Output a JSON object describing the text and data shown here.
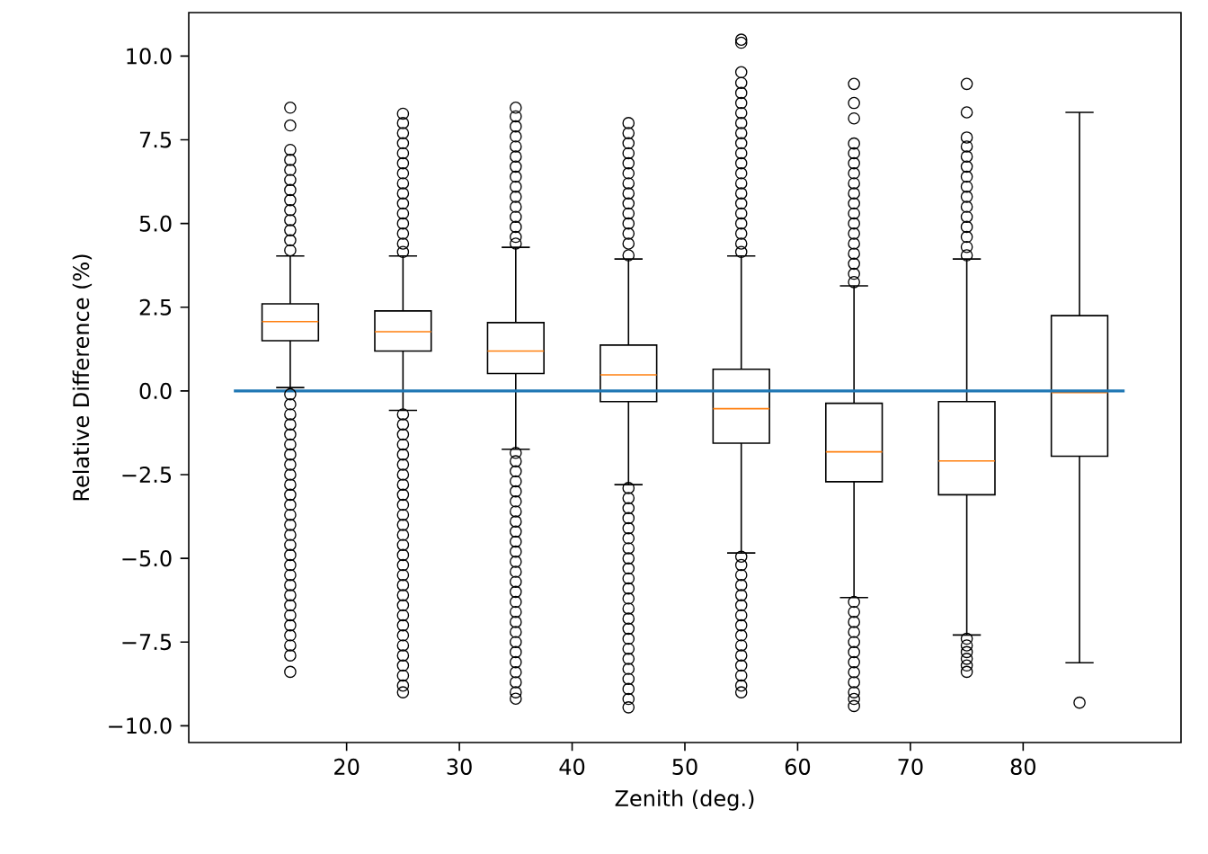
{
  "chart_data": {
    "type": "box",
    "xlabel": "Zenith (deg.)",
    "ylabel": "Relative Difference (%)",
    "xlim": [
      6,
      94
    ],
    "xticks": [
      20,
      30,
      40,
      50,
      60,
      70,
      80
    ],
    "ylim": [
      -10.5,
      11.3
    ],
    "yticks": [
      {
        "value": -10,
        "label": "−10.0"
      },
      {
        "value": -7.5,
        "label": "−7.5"
      },
      {
        "value": -5,
        "label": "−5.0"
      },
      {
        "value": -2.5,
        "label": "−2.5"
      },
      {
        "value": 0,
        "label": "0.0"
      },
      {
        "value": 2.5,
        "label": "2.5"
      },
      {
        "value": 5,
        "label": "5.0"
      },
      {
        "value": 7.5,
        "label": "7.5"
      },
      {
        "value": 10,
        "label": "10.0"
      }
    ],
    "series": [
      {
        "marker": "circle",
        "color": "#000000",
        "x": [
          15,
          25,
          35,
          45,
          55,
          65,
          75,
          85
        ],
        "boxes": [
          {
            "low": 0.1,
            "q1": 1.5,
            "median": 2.07,
            "q3": 2.6,
            "high": 4.03,
            "outliers": [
              8.46,
              7.93,
              7.2,
              6.9,
              6.6,
              6.3,
              6.0,
              5.7,
              5.4,
              5.1,
              4.8,
              4.5,
              4.2,
              -0.1,
              -0.4,
              -0.7,
              -1.0,
              -1.3,
              -1.6,
              -1.9,
              -2.2,
              -2.5,
              -2.8,
              -3.1,
              -3.4,
              -3.7,
              -4.0,
              -4.3,
              -4.6,
              -4.9,
              -5.2,
              -5.5,
              -5.8,
              -6.1,
              -6.4,
              -6.7,
              -7.0,
              -7.3,
              -7.6,
              -7.9,
              -8.39
            ]
          },
          {
            "low": -0.58,
            "q1": 1.19,
            "median": 1.77,
            "q3": 2.39,
            "high": 4.03,
            "outliers": [
              8.28,
              8.0,
              7.7,
              7.4,
              7.1,
              6.8,
              6.5,
              6.2,
              5.9,
              5.6,
              5.3,
              5.0,
              4.7,
              4.4,
              4.15,
              -0.7,
              -1.0,
              -1.3,
              -1.6,
              -1.9,
              -2.2,
              -2.5,
              -2.8,
              -3.1,
              -3.4,
              -3.7,
              -4.0,
              -4.3,
              -4.6,
              -4.9,
              -5.2,
              -5.5,
              -5.8,
              -6.1,
              -6.4,
              -6.7,
              -7.0,
              -7.3,
              -7.6,
              -7.9,
              -8.2,
              -8.5,
              -8.8,
              -9.0
            ]
          },
          {
            "low": -1.74,
            "q1": 0.52,
            "median": 1.19,
            "q3": 2.04,
            "high": 4.29,
            "outliers": [
              8.46,
              8.2,
              7.9,
              7.6,
              7.3,
              7.0,
              6.7,
              6.4,
              6.1,
              5.8,
              5.5,
              5.2,
              4.9,
              4.6,
              4.4,
              -1.85,
              -2.1,
              -2.4,
              -2.7,
              -3.0,
              -3.3,
              -3.6,
              -3.9,
              -4.2,
              -4.5,
              -4.8,
              -5.1,
              -5.4,
              -5.7,
              -6.0,
              -6.3,
              -6.6,
              -6.9,
              -7.2,
              -7.5,
              -7.8,
              -8.1,
              -8.4,
              -8.7,
              -9.0,
              -9.19
            ]
          },
          {
            "low": -2.8,
            "q1": -0.32,
            "median": 0.48,
            "q3": 1.37,
            "high": 3.94,
            "outliers": [
              8.0,
              7.7,
              7.4,
              7.1,
              6.8,
              6.5,
              6.2,
              5.9,
              5.6,
              5.3,
              5.0,
              4.7,
              4.4,
              4.05,
              -2.9,
              -3.2,
              -3.5,
              -3.8,
              -4.1,
              -4.4,
              -4.7,
              -5.0,
              -5.3,
              -5.6,
              -5.9,
              -6.2,
              -6.5,
              -6.8,
              -7.1,
              -7.4,
              -7.7,
              -8.0,
              -8.3,
              -8.6,
              -8.9,
              -9.2,
              -9.45
            ]
          },
          {
            "low": -4.84,
            "q1": -1.56,
            "median": -0.53,
            "q3": 0.65,
            "high": 4.03,
            "outliers": [
              10.49,
              10.4,
              9.52,
              9.2,
              8.9,
              8.6,
              8.3,
              8.0,
              7.7,
              7.4,
              7.1,
              6.8,
              6.5,
              6.2,
              5.9,
              5.6,
              5.3,
              5.0,
              4.7,
              4.4,
              4.15,
              -4.95,
              -5.2,
              -5.5,
              -5.8,
              -6.1,
              -6.4,
              -6.7,
              -7.0,
              -7.3,
              -7.6,
              -7.9,
              -8.2,
              -8.5,
              -8.8,
              -9.0
            ]
          },
          {
            "low": -6.17,
            "q1": -2.71,
            "median": -1.82,
            "q3": -0.37,
            "high": 3.14,
            "outliers": [
              9.17,
              8.6,
              8.14,
              7.39,
              7.1,
              6.8,
              6.5,
              6.2,
              5.9,
              5.6,
              5.3,
              5.0,
              4.7,
              4.4,
              4.1,
              3.8,
              3.5,
              3.25,
              -6.3,
              -6.6,
              -6.9,
              -7.2,
              -7.5,
              -7.8,
              -8.1,
              -8.4,
              -8.7,
              -9.0,
              -9.2,
              -9.41
            ]
          },
          {
            "low": -7.29,
            "q1": -3.1,
            "median": -2.09,
            "q3": -0.32,
            "high": 3.94,
            "outliers": [
              9.17,
              8.32,
              7.57,
              7.3,
              7.0,
              6.7,
              6.4,
              6.1,
              5.8,
              5.5,
              5.2,
              4.9,
              4.6,
              4.3,
              4.05,
              -7.4,
              -7.6,
              -7.8,
              -8.0,
              -8.2,
              -8.39
            ]
          },
          {
            "low": -8.12,
            "q1": -1.95,
            "median": -0.05,
            "q3": 2.25,
            "high": 8.32,
            "outliers": [
              -9.31
            ]
          }
        ]
      },
      {
        "type": "line",
        "color": "#1f77b4",
        "x": [
          10,
          89
        ],
        "values": [
          0,
          0
        ]
      }
    ]
  }
}
